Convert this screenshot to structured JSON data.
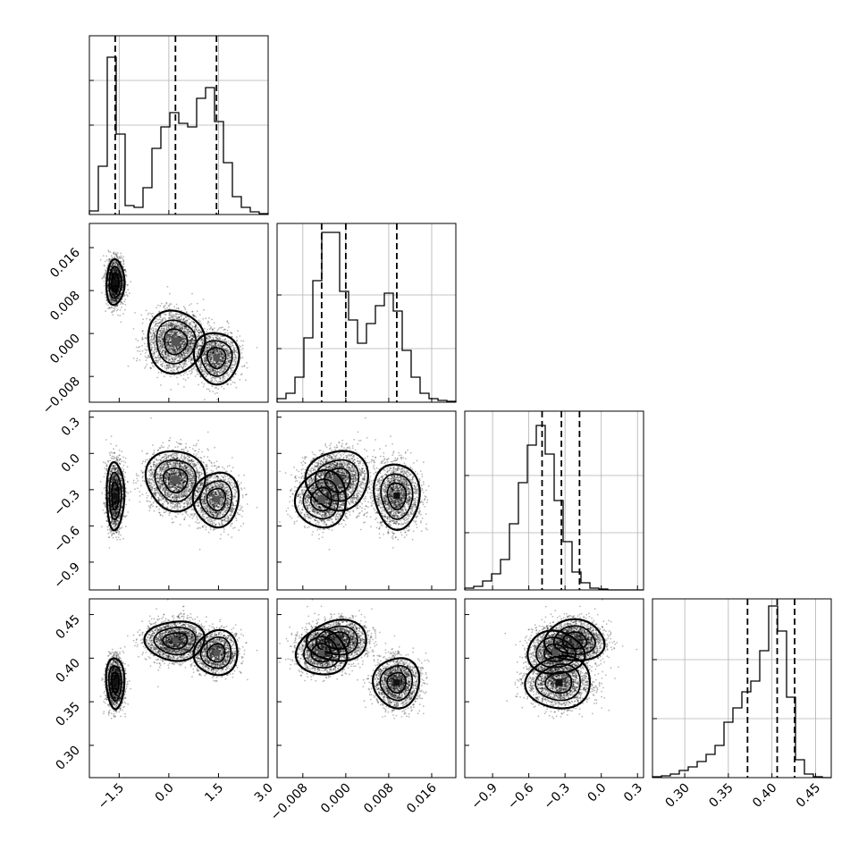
{
  "chart_data": {
    "type": "corner",
    "parameters": [
      {
        "range": [
          -2.4,
          3.0
        ],
        "ticks": [
          -1.5,
          0.0,
          1.5,
          3.0
        ],
        "tick_labels": [
          "−1.5",
          "0.0",
          "1.5",
          "3.0"
        ],
        "quantiles": [
          -1.62,
          0.2,
          1.44
        ]
      },
      {
        "range": [
          -0.0128,
          0.0205
        ],
        "ticks": [
          -0.008,
          0.0,
          0.008,
          0.016
        ],
        "tick_labels": [
          "−0.008",
          "0.000",
          "0.008",
          "0.016"
        ],
        "quantiles": [
          -0.0045,
          0.0,
          0.0095
        ]
      },
      {
        "range": [
          -1.13,
          0.35
        ],
        "ticks": [
          -0.9,
          -0.6,
          -0.3,
          0.0,
          0.3
        ],
        "tick_labels": [
          "−0.9",
          "−0.6",
          "−0.3",
          "0.0",
          "0.3"
        ],
        "quantiles": [
          -0.49,
          -0.33,
          -0.18
        ]
      },
      {
        "range": [
          0.263,
          0.468
        ],
        "ticks": [
          0.3,
          0.35,
          0.4,
          0.45
        ],
        "tick_labels": [
          "0.30",
          "0.35",
          "0.40",
          "0.45"
        ],
        "quantiles": [
          0.372,
          0.406,
          0.426
        ]
      }
    ],
    "histograms": [
      {
        "counts": [
          0.02,
          0.27,
          0.88,
          0.45,
          0.05,
          0.04,
          0.15,
          0.37,
          0.49,
          0.57,
          0.51,
          0.49,
          0.65,
          0.71,
          0.52,
          0.29,
          0.1,
          0.04,
          0.015,
          0.005
        ],
        "ytick_fracs": [
          0.5,
          0.75
        ]
      },
      {
        "counts": [
          0.02,
          0.05,
          0.14,
          0.36,
          0.68,
          0.95,
          0.95,
          0.62,
          0.46,
          0.33,
          0.44,
          0.54,
          0.61,
          0.51,
          0.29,
          0.14,
          0.05,
          0.02,
          0.01,
          0.005
        ],
        "ytick_fracs": [
          0.3,
          0.6
        ]
      },
      {
        "counts": [
          0.01,
          0.02,
          0.05,
          0.09,
          0.17,
          0.37,
          0.6,
          0.81,
          0.92,
          0.76,
          0.5,
          0.27,
          0.1,
          0.04,
          0.01,
          0.005,
          0.0,
          0.0,
          0.0,
          0.0
        ],
        "ytick_fracs": [
          0.32,
          0.64
        ]
      },
      {
        "counts": [
          0.005,
          0.01,
          0.02,
          0.04,
          0.06,
          0.09,
          0.13,
          0.18,
          0.31,
          0.39,
          0.48,
          0.54,
          0.71,
          0.96,
          0.82,
          0.45,
          0.1,
          0.02,
          0.005,
          0.0
        ],
        "ytick_fracs": [
          0.33,
          0.66
        ]
      }
    ],
    "contour_style": "filled density contours with scattered samples",
    "grid": true
  }
}
